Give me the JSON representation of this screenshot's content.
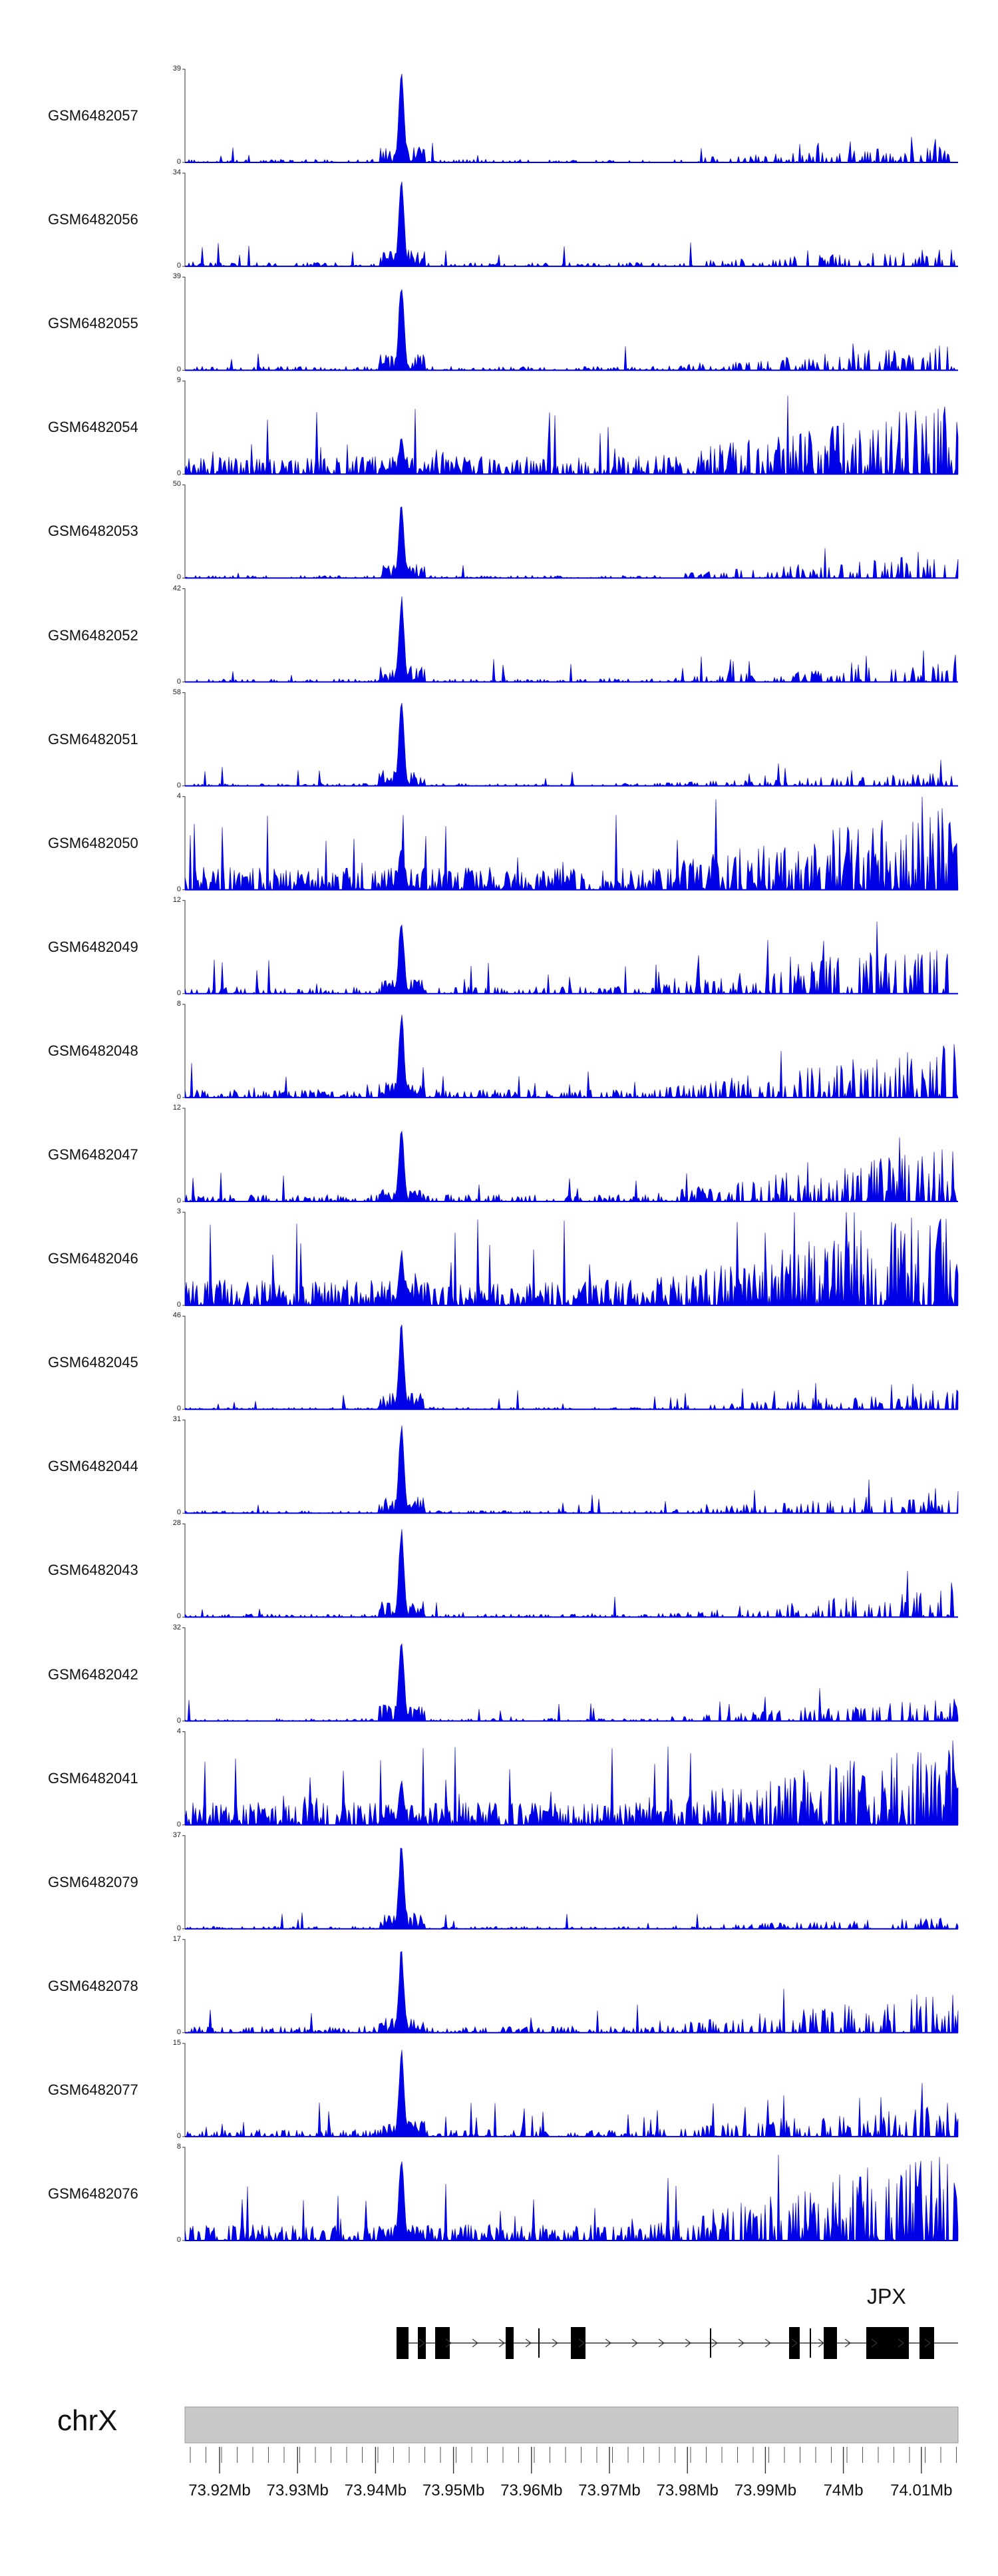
{
  "chart_data": {
    "type": "area",
    "chromosome": "chrX",
    "gene": "JPX",
    "x_ticks": [
      "73.92Mb",
      "73.93Mb",
      "73.94Mb",
      "73.95Mb",
      "73.96Mb",
      "73.97Mb",
      "73.98Mb",
      "73.99Mb",
      "74Mb",
      "74.01Mb"
    ],
    "tracks": [
      {
        "name": "GSM6482057",
        "ymax": "39",
        "ymin": "0",
        "noise": 0.1,
        "peak": 1.0,
        "late": 0.15
      },
      {
        "name": "GSM6482056",
        "ymax": "34",
        "ymin": "0",
        "noise": 0.12,
        "peak": 1.0,
        "late": 0.15
      },
      {
        "name": "GSM6482055",
        "ymax": "39",
        "ymin": "0",
        "noise": 0.12,
        "peak": 1.0,
        "late": 0.25
      },
      {
        "name": "GSM6482054",
        "ymax": "9",
        "ymin": "0",
        "noise": 0.55,
        "peak": 0.4,
        "late": 0.6
      },
      {
        "name": "GSM6482053",
        "ymax": "50",
        "ymin": "0",
        "noise": 0.08,
        "peak": 0.85,
        "late": 0.25
      },
      {
        "name": "GSM6482052",
        "ymax": "42",
        "ymin": "0",
        "noise": 0.1,
        "peak": 0.95,
        "late": 0.18
      },
      {
        "name": "GSM6482051",
        "ymax": "58",
        "ymin": "0",
        "noise": 0.08,
        "peak": 0.95,
        "late": 0.12
      },
      {
        "name": "GSM6482050",
        "ymax": "4",
        "ymin": "0",
        "noise": 0.7,
        "peak": 0.5,
        "late": 0.7
      },
      {
        "name": "GSM6482049",
        "ymax": "12",
        "ymin": "0",
        "noise": 0.22,
        "peak": 0.85,
        "late": 0.55
      },
      {
        "name": "GSM6482048",
        "ymax": "8",
        "ymin": "0",
        "noise": 0.25,
        "peak": 0.95,
        "late": 0.5
      },
      {
        "name": "GSM6482047",
        "ymax": "12",
        "ymin": "0",
        "noise": 0.22,
        "peak": 0.85,
        "late": 0.55
      },
      {
        "name": "GSM6482046",
        "ymax": "3",
        "ymin": "0",
        "noise": 0.8,
        "peak": 0.6,
        "late": 0.8
      },
      {
        "name": "GSM6482045",
        "ymax": "46",
        "ymin": "0",
        "noise": 0.06,
        "peak": 0.98,
        "late": 0.2
      },
      {
        "name": "GSM6482044",
        "ymax": "31",
        "ymin": "0",
        "noise": 0.08,
        "peak": 0.98,
        "late": 0.22
      },
      {
        "name": "GSM6482043",
        "ymax": "28",
        "ymin": "0",
        "noise": 0.1,
        "peak": 0.98,
        "late": 0.3
      },
      {
        "name": "GSM6482042",
        "ymax": "32",
        "ymin": "0",
        "noise": 0.08,
        "peak": 0.98,
        "late": 0.22
      },
      {
        "name": "GSM6482041",
        "ymax": "4",
        "ymin": "0",
        "noise": 0.7,
        "peak": 0.5,
        "late": 0.7
      },
      {
        "name": "GSM6482079",
        "ymax": "37",
        "ymin": "0",
        "noise": 0.08,
        "peak": 0.95,
        "late": 0.1
      },
      {
        "name": "GSM6482078",
        "ymax": "17",
        "ymin": "0",
        "noise": 0.2,
        "peak": 0.92,
        "late": 0.4
      },
      {
        "name": "GSM6482077",
        "ymax": "15",
        "ymin": "0",
        "noise": 0.22,
        "peak": 0.95,
        "late": 0.3
      },
      {
        "name": "GSM6482076",
        "ymax": "8",
        "ymin": "0",
        "noise": 0.5,
        "peak": 0.95,
        "late": 0.8
      }
    ],
    "series_color": "#0000e6"
  }
}
